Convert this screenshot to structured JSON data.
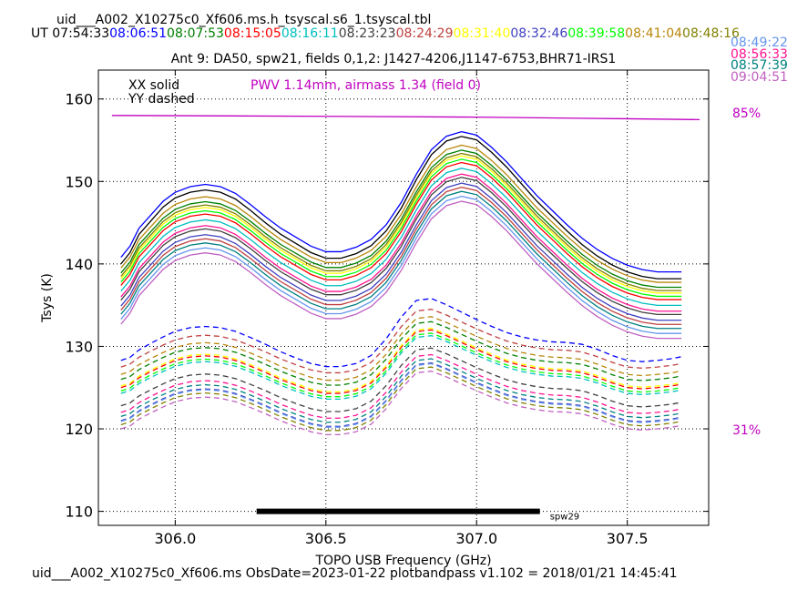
{
  "header": {
    "title": "uid___A002_X10275c0_Xf606.ms.h_tsyscal.s6_1.tsyscal.tbl",
    "ut_label": "UT",
    "times_row": [
      {
        "t": "07:54:33",
        "color": "#000000"
      },
      {
        "t": "08:06:51",
        "color": "#0000ff"
      },
      {
        "t": "08:07:53",
        "color": "#008000"
      },
      {
        "t": "08:15:05",
        "color": "#ff0000"
      },
      {
        "t": "08:16:11",
        "color": "#00bfbf"
      },
      {
        "t": "08:23:23",
        "color": "#404040"
      },
      {
        "t": "08:24:29",
        "color": "#c04040"
      },
      {
        "t": "08:31:40",
        "color": "#ffff00"
      },
      {
        "t": "08:32:46",
        "color": "#4040c0"
      },
      {
        "t": "08:39:58",
        "color": "#00ff00"
      },
      {
        "t": "08:41:04",
        "color": "#b8860b"
      },
      {
        "t": "08:48:16",
        "color": "#808000"
      }
    ],
    "times_right": [
      {
        "t": "08:49:22",
        "color": "#6495ed"
      },
      {
        "t": "08:56:33",
        "color": "#ff1493"
      },
      {
        "t": "08:57:39",
        "color": "#008080"
      },
      {
        "t": "09:04:51",
        "color": "#c060c0"
      }
    ],
    "subtitle": "Ant 9: DA50,  spw21,  fields 0,1,2: J1427-4206,J1147-6753,BHR71-IRS1"
  },
  "footer": "uid___A002_X10275c0_Xf606.ms  ObsDate=2023-01-22   plotbandpass v1.102 = 2018/01/21 14:45:41",
  "chart_data": {
    "type": "line",
    "xlabel": "TOPO USB Frequency (GHz)",
    "ylabel": "Tsys (K)",
    "xlim": [
      305.745,
      307.77
    ],
    "ylim": [
      108.3,
      163.5
    ],
    "xticks": [
      306.0,
      306.5,
      307.0,
      307.5
    ],
    "xtick_labels": [
      "306.0",
      "306.5",
      "307.0",
      "307.5"
    ],
    "yticks": [
      110,
      120,
      130,
      140,
      150,
      160
    ],
    "ytick_labels": [
      "110",
      "120",
      "130",
      "140",
      "150",
      "160"
    ],
    "grid": true,
    "legend": {
      "solid": "XX solid",
      "dashed": "YY dashed"
    },
    "annotation": {
      "text": "PWV 1.14mm, airmass 1.34 (field 0)",
      "color": "#c000c0"
    },
    "atm_scale": {
      "high": "85%",
      "low": "31%",
      "color": "#c000c0"
    },
    "atm_line": {
      "x": [
        305.79,
        306.5,
        307.0,
        307.5,
        307.74
      ],
      "y": [
        158.0,
        157.9,
        157.8,
        157.6,
        157.5
      ],
      "color": "#c000c0"
    },
    "spw_bar": {
      "x": [
        306.27,
        307.21
      ],
      "y": 110,
      "label": "spw29"
    },
    "shape_x": [
      305.82,
      305.85,
      305.88,
      305.92,
      305.96,
      306.0,
      306.05,
      306.1,
      306.15,
      306.2,
      306.25,
      306.3,
      306.35,
      306.4,
      306.45,
      306.5,
      306.55,
      306.6,
      306.65,
      306.7,
      306.75,
      306.8,
      306.85,
      306.9,
      306.95,
      307.0,
      307.05,
      307.1,
      307.15,
      307.2,
      307.25,
      307.3,
      307.35,
      307.4,
      307.45,
      307.5,
      307.55,
      307.6,
      307.65,
      307.68
    ],
    "shape_xx": [
      0.0,
      0.1,
      0.26,
      0.38,
      0.5,
      0.58,
      0.63,
      0.65,
      0.63,
      0.57,
      0.47,
      0.36,
      0.26,
      0.18,
      0.1,
      0.05,
      0.05,
      0.09,
      0.16,
      0.29,
      0.49,
      0.74,
      0.96,
      1.08,
      1.12,
      1.09,
      0.98,
      0.85,
      0.7,
      0.55,
      0.42,
      0.29,
      0.17,
      0.07,
      -0.01,
      -0.07,
      -0.11,
      -0.13,
      -0.13,
      -0.13
    ],
    "shape_yy": [
      0.0,
      0.05,
      0.17,
      0.28,
      0.38,
      0.47,
      0.53,
      0.55,
      0.53,
      0.47,
      0.37,
      0.26,
      0.14,
      0.04,
      -0.05,
      -0.1,
      -0.1,
      -0.05,
      0.08,
      0.35,
      0.7,
      0.97,
      1.0,
      0.9,
      0.78,
      0.66,
      0.55,
      0.45,
      0.38,
      0.33,
      0.3,
      0.29,
      0.26,
      0.18,
      0.08,
      0.0,
      -0.02,
      0.0,
      0.03,
      0.06
    ],
    "series": [
      {
        "color": "#000000",
        "xx": [
          140.0,
          13.8
        ],
        "yy": null
      },
      {
        "color": "#0000ff",
        "xx": [
          140.8,
          13.6
        ],
        "yy": [
          128.3,
          7.5
        ]
      },
      {
        "color": "#008000",
        "xx": [
          138.9,
          13.3
        ],
        "yy": [
          126.0,
          7.0
        ]
      },
      {
        "color": "#ff0000",
        "xx": [
          137.4,
          13.3
        ],
        "yy": [
          125.0,
          7.0
        ]
      },
      {
        "color": "#00bfbf",
        "xx": [
          136.7,
          13.3
        ],
        "yy": [
          124.3,
          7.0
        ]
      },
      {
        "color": "#404040",
        "xx": [
          135.6,
          13.3
        ],
        "yy": [
          122.8,
          7.0
        ]
      },
      {
        "color": "#c04040",
        "xx": [
          134.4,
          13.3
        ],
        "yy": [
          127.5,
          7.0
        ]
      },
      {
        "color": "#ffff00",
        "xx": [
          138.2,
          13.3
        ],
        "yy": [
          125.2,
          7.0
        ]
      },
      {
        "color": "#4040c0",
        "xx": [
          134.9,
          13.3
        ],
        "yy": [
          121.0,
          7.0
        ]
      },
      {
        "color": "#00ff00",
        "xx": [
          137.8,
          13.3
        ],
        "yy": [
          124.6,
          7.0
        ]
      },
      {
        "color": "#b8860b",
        "xx": [
          139.5,
          13.3
        ],
        "yy": [
          126.6,
          7.0
        ]
      },
      {
        "color": "#808000",
        "xx": [
          138.5,
          13.3
        ],
        "yy": [
          120.5,
          7.0
        ]
      },
      {
        "color": "#6495ed",
        "xx": [
          133.3,
          13.3
        ],
        "yy": [
          120.9,
          7.0
        ]
      },
      {
        "color": "#ff1493",
        "xx": [
          136.0,
          13.3
        ],
        "yy": [
          122.0,
          7.0
        ]
      },
      {
        "color": "#008080",
        "xx": [
          133.9,
          13.3
        ],
        "yy": [
          121.5,
          7.0
        ]
      },
      {
        "color": "#c060c0",
        "xx": [
          132.7,
          13.3
        ],
        "yy": [
          120.0,
          7.0
        ]
      }
    ]
  }
}
